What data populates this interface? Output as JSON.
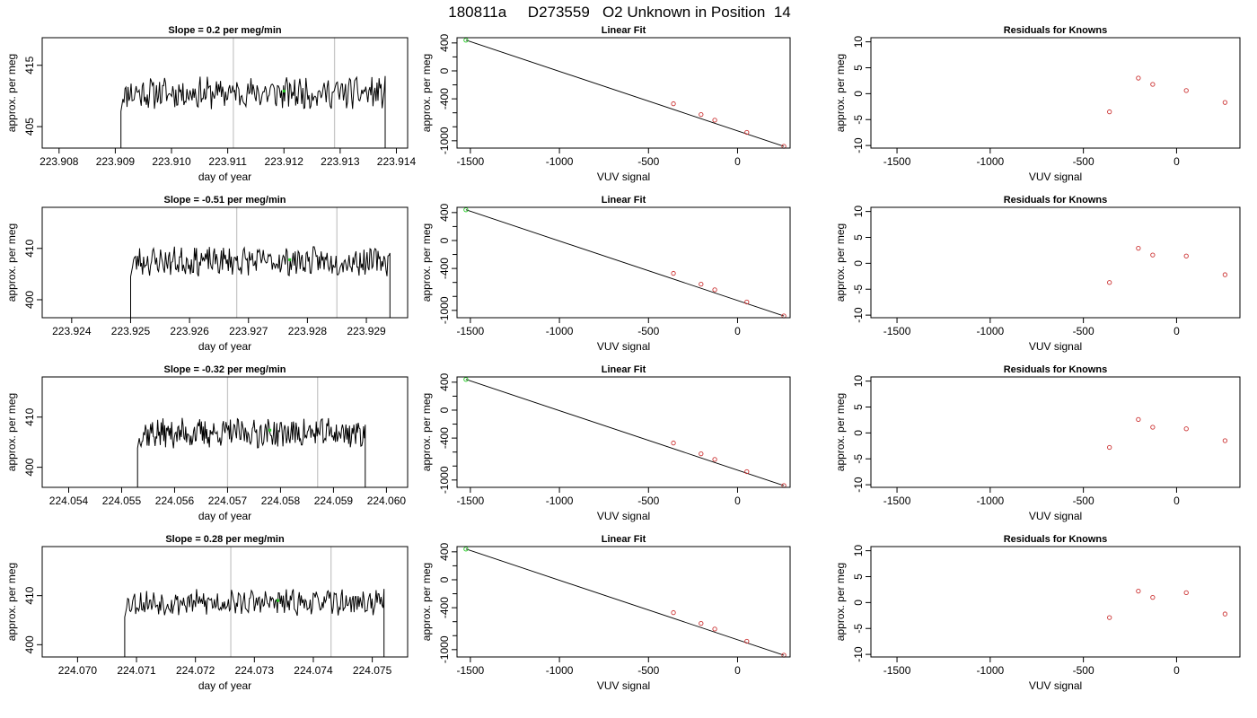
{
  "title": "180811a     D273559   O2 Unknown in Position  14",
  "colors": {
    "trace": "#000000",
    "vline": "#c8c8c8",
    "green": "#22cc22",
    "red": "#cc3333",
    "fit": "#000000"
  },
  "rows": [
    {
      "trace": {
        "title": "Slope =  0.2  per meg/min",
        "xlabel": "day of year",
        "ylabel": "approx. per meg",
        "xlim": [
          223.9077,
          223.9142
        ],
        "ylim": [
          401.5,
          419.5
        ],
        "xticks": [
          "223.908",
          "223.909",
          "223.910",
          "223.911",
          "223.912",
          "223.913",
          "223.914"
        ],
        "yticks": [
          "405",
          "415"
        ],
        "t0": 223.9091,
        "t1": 223.9138,
        "base": 410.5,
        "amp": 2.2,
        "seed": 11,
        "vlines": [
          223.9111,
          223.9129
        ],
        "green": {
          "x": 223.912,
          "y": 410.8
        }
      },
      "fit": {
        "knowns": [
          [
            -360,
            -470
          ],
          [
            -205,
            -625
          ],
          [
            -128,
            -705
          ],
          [
            52,
            -880
          ],
          [
            260,
            -1080
          ]
        ],
        "unknown": [
          -1525,
          440
        ]
      },
      "resid": [
        [
          -360,
          -3.5
        ],
        [
          -205,
          3.0
        ],
        [
          -128,
          1.8
        ],
        [
          52,
          0.6
        ],
        [
          260,
          -1.7
        ]
      ]
    },
    {
      "trace": {
        "title": "Slope =  -0.51  per meg/min",
        "xlabel": "day of year",
        "ylabel": "approx. per meg",
        "xlim": [
          223.9235,
          223.9297
        ],
        "ylim": [
          396.5,
          418.0
        ],
        "xticks": [
          "223.924",
          "223.925",
          "223.926",
          "223.927",
          "223.928",
          "223.929"
        ],
        "yticks": [
          "400",
          "410"
        ],
        "t0": 223.925,
        "t1": 223.9294,
        "base": 407.5,
        "amp": 2.4,
        "seed": 23,
        "vlines": [
          223.9268,
          223.9285
        ],
        "green": {
          "x": 223.9277,
          "y": 407.8
        }
      },
      "fit": {
        "knowns": [
          [
            -360,
            -470
          ],
          [
            -205,
            -625
          ],
          [
            -128,
            -705
          ],
          [
            52,
            -880
          ],
          [
            260,
            -1080
          ]
        ],
        "unknown": [
          -1525,
          440
        ]
      },
      "resid": [
        [
          -360,
          -3.7
        ],
        [
          -205,
          2.9
        ],
        [
          -128,
          1.6
        ],
        [
          52,
          1.4
        ],
        [
          260,
          -2.2
        ]
      ]
    },
    {
      "trace": {
        "title": "Slope =  -0.32  per meg/min",
        "xlabel": "day of year",
        "ylabel": "approx. per meg",
        "xlim": [
          224.0535,
          224.0604
        ],
        "ylim": [
          396.0,
          418.0
        ],
        "xticks": [
          "224.054",
          "224.055",
          "224.056",
          "224.057",
          "224.058",
          "224.059",
          "224.060"
        ],
        "yticks": [
          "400",
          "410"
        ],
        "t0": 224.0553,
        "t1": 224.0596,
        "base": 406.8,
        "amp": 2.6,
        "seed": 37,
        "vlines": [
          224.057,
          224.0587
        ],
        "green": {
          "x": 224.0578,
          "y": 407.4
        }
      },
      "fit": {
        "knowns": [
          [
            -360,
            -470
          ],
          [
            -205,
            -625
          ],
          [
            -128,
            -705
          ],
          [
            52,
            -880
          ],
          [
            260,
            -1080
          ]
        ],
        "unknown": [
          -1525,
          440
        ]
      },
      "resid": [
        [
          -360,
          -2.8
        ],
        [
          -205,
          2.6
        ],
        [
          -128,
          1.1
        ],
        [
          52,
          0.8
        ],
        [
          260,
          -1.5
        ]
      ]
    },
    {
      "trace": {
        "title": "Slope =  0.28  per meg/min",
        "xlabel": "day of year",
        "ylabel": "approx. per meg",
        "xlim": [
          224.0694,
          224.0756
        ],
        "ylim": [
          397.5,
          420.0
        ],
        "xticks": [
          "224.070",
          "224.071",
          "224.072",
          "224.073",
          "224.074",
          "224.075"
        ],
        "yticks": [
          "400",
          "410"
        ],
        "t0": 224.0708,
        "t1": 224.0752,
        "base": 408.6,
        "amp": 2.2,
        "seed": 53,
        "vlines": [
          224.0726,
          224.0743
        ],
        "green": {
          "x": 224.0734,
          "y": 409.0
        }
      },
      "fit": {
        "knowns": [
          [
            -360,
            -470
          ],
          [
            -205,
            -625
          ],
          [
            -128,
            -705
          ],
          [
            52,
            -880
          ],
          [
            260,
            -1080
          ]
        ],
        "unknown": [
          -1525,
          440
        ]
      },
      "resid": [
        [
          -360,
          -2.9
        ],
        [
          -205,
          2.2
        ],
        [
          -128,
          1.0
        ],
        [
          52,
          1.9
        ],
        [
          260,
          -2.2
        ]
      ]
    }
  ],
  "fit_common": {
    "title": "Linear Fit",
    "xlabel": "VUV signal",
    "ylabel": "approx. per meg",
    "xlim": [
      -1575,
      295
    ],
    "ylim": [
      -1105,
      475
    ],
    "xticks": [
      -1500,
      -1000,
      -500,
      0
    ],
    "yticks": [
      400,
      0,
      -400,
      -1000
    ]
  },
  "resid_common": {
    "title": "Residuals for Knowns",
    "xlabel": "VUV signal",
    "ylabel": "approx. per meg",
    "xlim": [
      -1640,
      340
    ],
    "ylim": [
      -10.5,
      10.8
    ],
    "xticks": [
      -1500,
      -1000,
      -500,
      0
    ],
    "yticks": [
      10,
      5,
      0,
      -5,
      -10
    ]
  },
  "chart_data": {
    "type": "line",
    "title": "180811a     D273559   O2 Unknown in Position  14",
    "panels": [
      {
        "title": "Slope =  0.2  per meg/min",
        "xlabel": "day of year",
        "ylabel": "approx. per meg",
        "xlim": [
          223.9077,
          223.9142
        ],
        "ylim": [
          401.5,
          419.5
        ]
      },
      {
        "title": "Linear Fit",
        "xlabel": "VUV signal",
        "ylabel": "approx. per meg",
        "type": "scatter"
      },
      {
        "title": "Residuals for Knowns",
        "xlabel": "VUV signal",
        "ylabel": "approx. per meg",
        "type": "scatter"
      }
    ],
    "fit_points": [
      [
        -360,
        -470
      ],
      [
        -205,
        -625
      ],
      [
        -128,
        -705
      ],
      [
        52,
        -880
      ],
      [
        260,
        -1080
      ]
    ],
    "unknown_point": [
      -1525,
      440
    ],
    "grid": false
  }
}
